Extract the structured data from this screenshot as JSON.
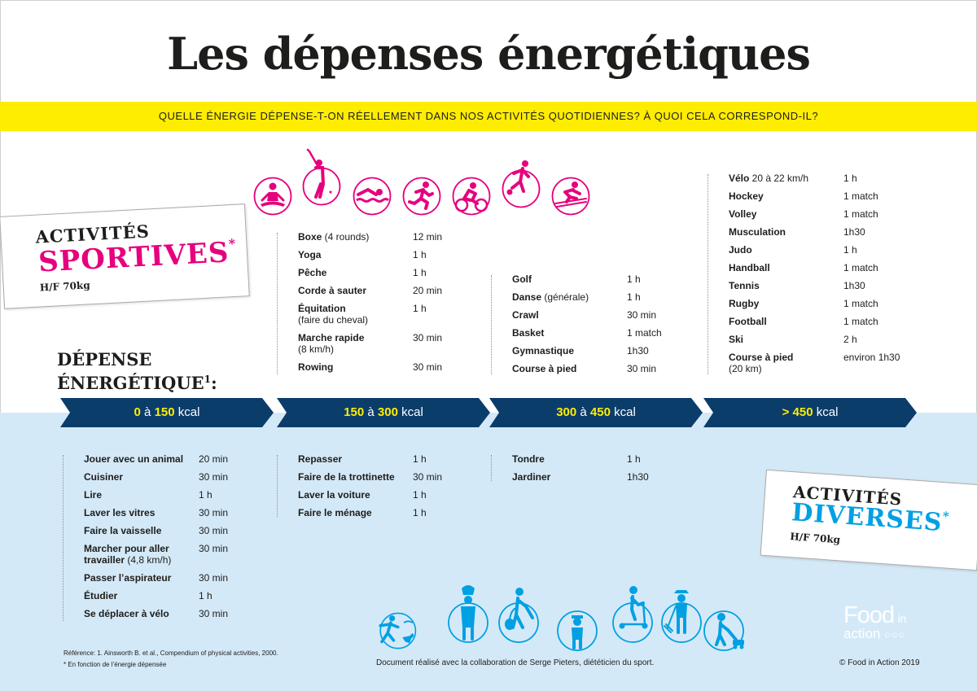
{
  "title": "Les dépenses énergétiques",
  "subtitle": "QUELLE ÉNERGIE DÉPENSE-T-ON RÉELLEMENT DANS NOS ACTIVITÉS QUOTIDIENNES? À QUOI CELA CORRESPOND-IL?",
  "colors": {
    "magenta": "#e6007e",
    "cyan": "#00a0e3",
    "yellow": "#ffed00",
    "navy": "#0b3d6b",
    "light_blue": "#d4e9f7"
  },
  "sport_card": {
    "line1": "ACTIVITÉS",
    "line2": "SPORTIVES",
    "star": "*",
    "sub": "H/F 70kg"
  },
  "diverse_card": {
    "line1": "ACTIVITÉS",
    "line2": "DIVERSES",
    "star": "*",
    "sub": "H/F 70kg"
  },
  "depense": {
    "line1": "DÉPENSE",
    "line2": "ÉNERGÉTIQUE",
    "sup": "1",
    "colon": ":"
  },
  "ranges": [
    {
      "a": "0",
      "mid": " à ",
      "b": "150",
      "unit": " kcal"
    },
    {
      "a": "150",
      "mid": " à ",
      "b": "300",
      "unit": " kcal"
    },
    {
      "a": "300",
      "mid": " à ",
      "b": "450",
      "unit": " kcal"
    },
    {
      "a": "",
      "mid": "> ",
      "b": "450",
      "unit": " kcal"
    }
  ],
  "sport_icons": [
    "yoga-icon",
    "golf-icon",
    "swimming-icon",
    "running-icon",
    "cycling-icon",
    "football-icon",
    "skiing-icon"
  ],
  "diverse_icons": [
    "playing-with-dog-icon",
    "cooking-icon",
    "vacuuming-icon",
    "student-icon",
    "scooter-icon",
    "gardening-icon",
    "lawn-mowing-icon"
  ],
  "sport": {
    "col2": [
      {
        "name": "Boxe",
        "light": " (4 rounds)",
        "value": "12 min"
      },
      {
        "name": "Yoga",
        "value": "1 h"
      },
      {
        "name": "Pêche",
        "value": "1 h"
      },
      {
        "name": "Corde à sauter",
        "value": "20 min"
      },
      {
        "name": "Équitation",
        "line2": "(faire du cheval)",
        "value": "1 h"
      },
      {
        "name": "Marche rapide",
        "line2": "(8 km/h)",
        "value": "30 min"
      },
      {
        "name": "Rowing",
        "value": "30 min"
      }
    ],
    "col3": [
      {
        "name": "Golf",
        "value": "1 h"
      },
      {
        "name": "Danse",
        "light": " (générale)",
        "value": "1 h"
      },
      {
        "name": "Crawl",
        "value": "30 min"
      },
      {
        "name": "Basket",
        "value": "1 match"
      },
      {
        "name": "Gymnastique",
        "value": "1h30"
      },
      {
        "name": "Course à pied",
        "value": "30 min"
      }
    ],
    "col4": [
      {
        "name": "Vélo",
        "light": " 20 à 22 km/h",
        "value": "1 h"
      },
      {
        "name": "Hockey",
        "value": "1 match"
      },
      {
        "name": "Volley",
        "value": "1 match"
      },
      {
        "name": "Musculation",
        "value": "1h30"
      },
      {
        "name": "Judo",
        "value": "1 h"
      },
      {
        "name": "Handball",
        "value": "1 match"
      },
      {
        "name": "Tennis",
        "value": "1h30"
      },
      {
        "name": "Rugby",
        "value": "1 match"
      },
      {
        "name": "Football",
        "value": "1 match"
      },
      {
        "name": "Ski",
        "value": "2 h"
      },
      {
        "name": "Course à pied",
        "line2": "(20 km)",
        "value": "environ 1h30"
      }
    ]
  },
  "diverse": {
    "col1": [
      {
        "name": "Jouer avec un animal",
        "value": "20 min"
      },
      {
        "name": "Cuisiner",
        "value": "30 min"
      },
      {
        "name": "Lire",
        "value": "1 h"
      },
      {
        "name": "Laver les vitres",
        "value": "30 min"
      },
      {
        "name": "Faire la vaisselle",
        "value": "30 min"
      },
      {
        "name": "Marcher pour aller",
        "line2b": "travailler",
        "line2": " (4,8 km/h)",
        "value": "30 min"
      },
      {
        "name": "Passer l’aspirateur",
        "value": "30 min"
      },
      {
        "name": "Étudier",
        "value": "1 h"
      },
      {
        "name": "Se déplacer à vélo",
        "value": "30 min"
      }
    ],
    "col2": [
      {
        "name": "Repasser",
        "value": "1 h"
      },
      {
        "name": "Faire de la trottinette",
        "value": "30 min"
      },
      {
        "name": "Laver la voiture",
        "value": "1 h"
      },
      {
        "name": "Faire le ménage",
        "value": "1 h"
      }
    ],
    "col3": [
      {
        "name": "Tondre",
        "value": "1 h"
      },
      {
        "name": "Jardiner",
        "value": "1h30"
      }
    ]
  },
  "footer": {
    "reference": "Référence: 1. Ainsworth B. et al., Compendium of physical activities, 2000.",
    "note": "* En fonction de l’énergie dépensée",
    "collab": "Document réalisé avec la collaboration de Serge Pieters, diététicien du sport.",
    "copyright": "© Food in Action 2019",
    "logo": {
      "food": "Food",
      "in": "in",
      "action": "action"
    }
  }
}
